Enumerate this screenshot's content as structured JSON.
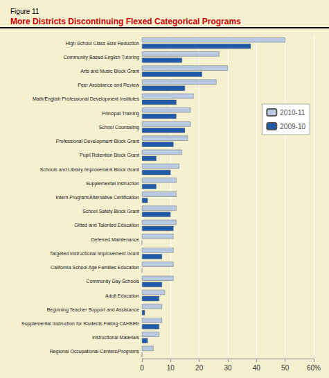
{
  "chart_data": {
    "type": "bar",
    "orientation": "horizontal",
    "subtitle": "Figure 11",
    "title": "More Districts Discontinuing Flexed Categorical Programs",
    "categories": [
      "High School Class Size Reduction",
      "Community Based English Tutoring",
      "Arts and Music Block Grant",
      "Peer Assistance and Review",
      "Math/English Professional Development Institutes",
      "Principal Training",
      "School Counseling",
      "Professional Development Block Grant",
      "Pupil Retention Block Grant",
      "Schools and Library Improvement Block Grant",
      "Supplemental Instruction",
      "Intern Program/Alternative Certification",
      "School Safety Block Grant",
      "Gifted and Talented Education",
      "Deferred Maintenance",
      "Targeted Instructional Improvement Grant",
      "California School Age Families Education",
      "Community Day Schools",
      "Adult Education",
      "Beginning Teacher Support and Assistance",
      "Supplemental Instruction for Students Falling CAHSEE",
      "Instructional Materials",
      "Regional Occupational Centers/Programs"
    ],
    "series": [
      {
        "name": "2010-11",
        "color": "#b8c9e1",
        "values": [
          50,
          27,
          30,
          26,
          18,
          17,
          17,
          16,
          14,
          13,
          12,
          12,
          12,
          12,
          11,
          11,
          11,
          11,
          8,
          7,
          7,
          6,
          4
        ]
      },
      {
        "name": "2009-10",
        "color": "#1f5aab",
        "values": [
          38,
          14,
          21,
          15,
          12,
          12,
          15,
          11,
          5,
          10,
          5,
          2,
          10,
          11,
          0,
          7,
          0,
          7,
          6,
          1,
          6,
          2,
          0
        ]
      }
    ],
    "xlim": [
      0,
      60
    ],
    "xticks": [
      0,
      10,
      20,
      30,
      40,
      50,
      {
        "value": 60,
        "label": "60%"
      }
    ],
    "grid": true,
    "legend": "upper right"
  }
}
